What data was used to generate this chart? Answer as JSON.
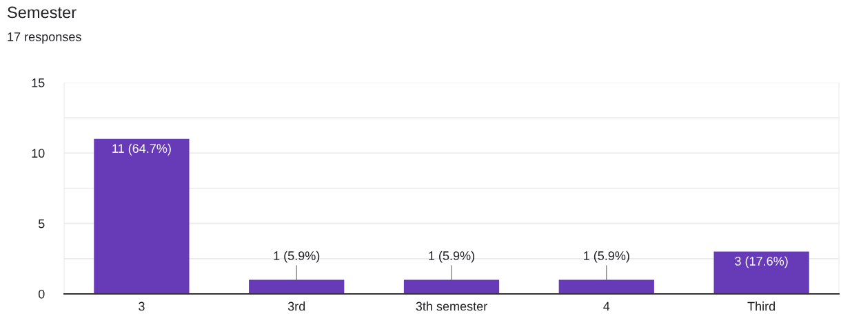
{
  "chart_data": {
    "type": "bar",
    "title": "Semester",
    "subtitle": "17 responses",
    "categories": [
      "3",
      "3rd",
      "3th semester",
      "4",
      "Third"
    ],
    "values": [
      11,
      1,
      1,
      1,
      3
    ],
    "color": "#673ab7",
    "value_labels": [
      "11 (64.7%)",
      "1 (5.9%)",
      "1 (5.9%)",
      "1 (5.9%)",
      "3 (17.6%)"
    ],
    "ylim": [
      0,
      15
    ],
    "yticks": [
      0,
      {
        "value": 2.5,
        "label": null
      },
      5,
      {
        "value": 7.5,
        "label": null
      },
      10,
      {
        "value": 12.5,
        "label": null
      },
      15
    ],
    "grid": "y"
  }
}
